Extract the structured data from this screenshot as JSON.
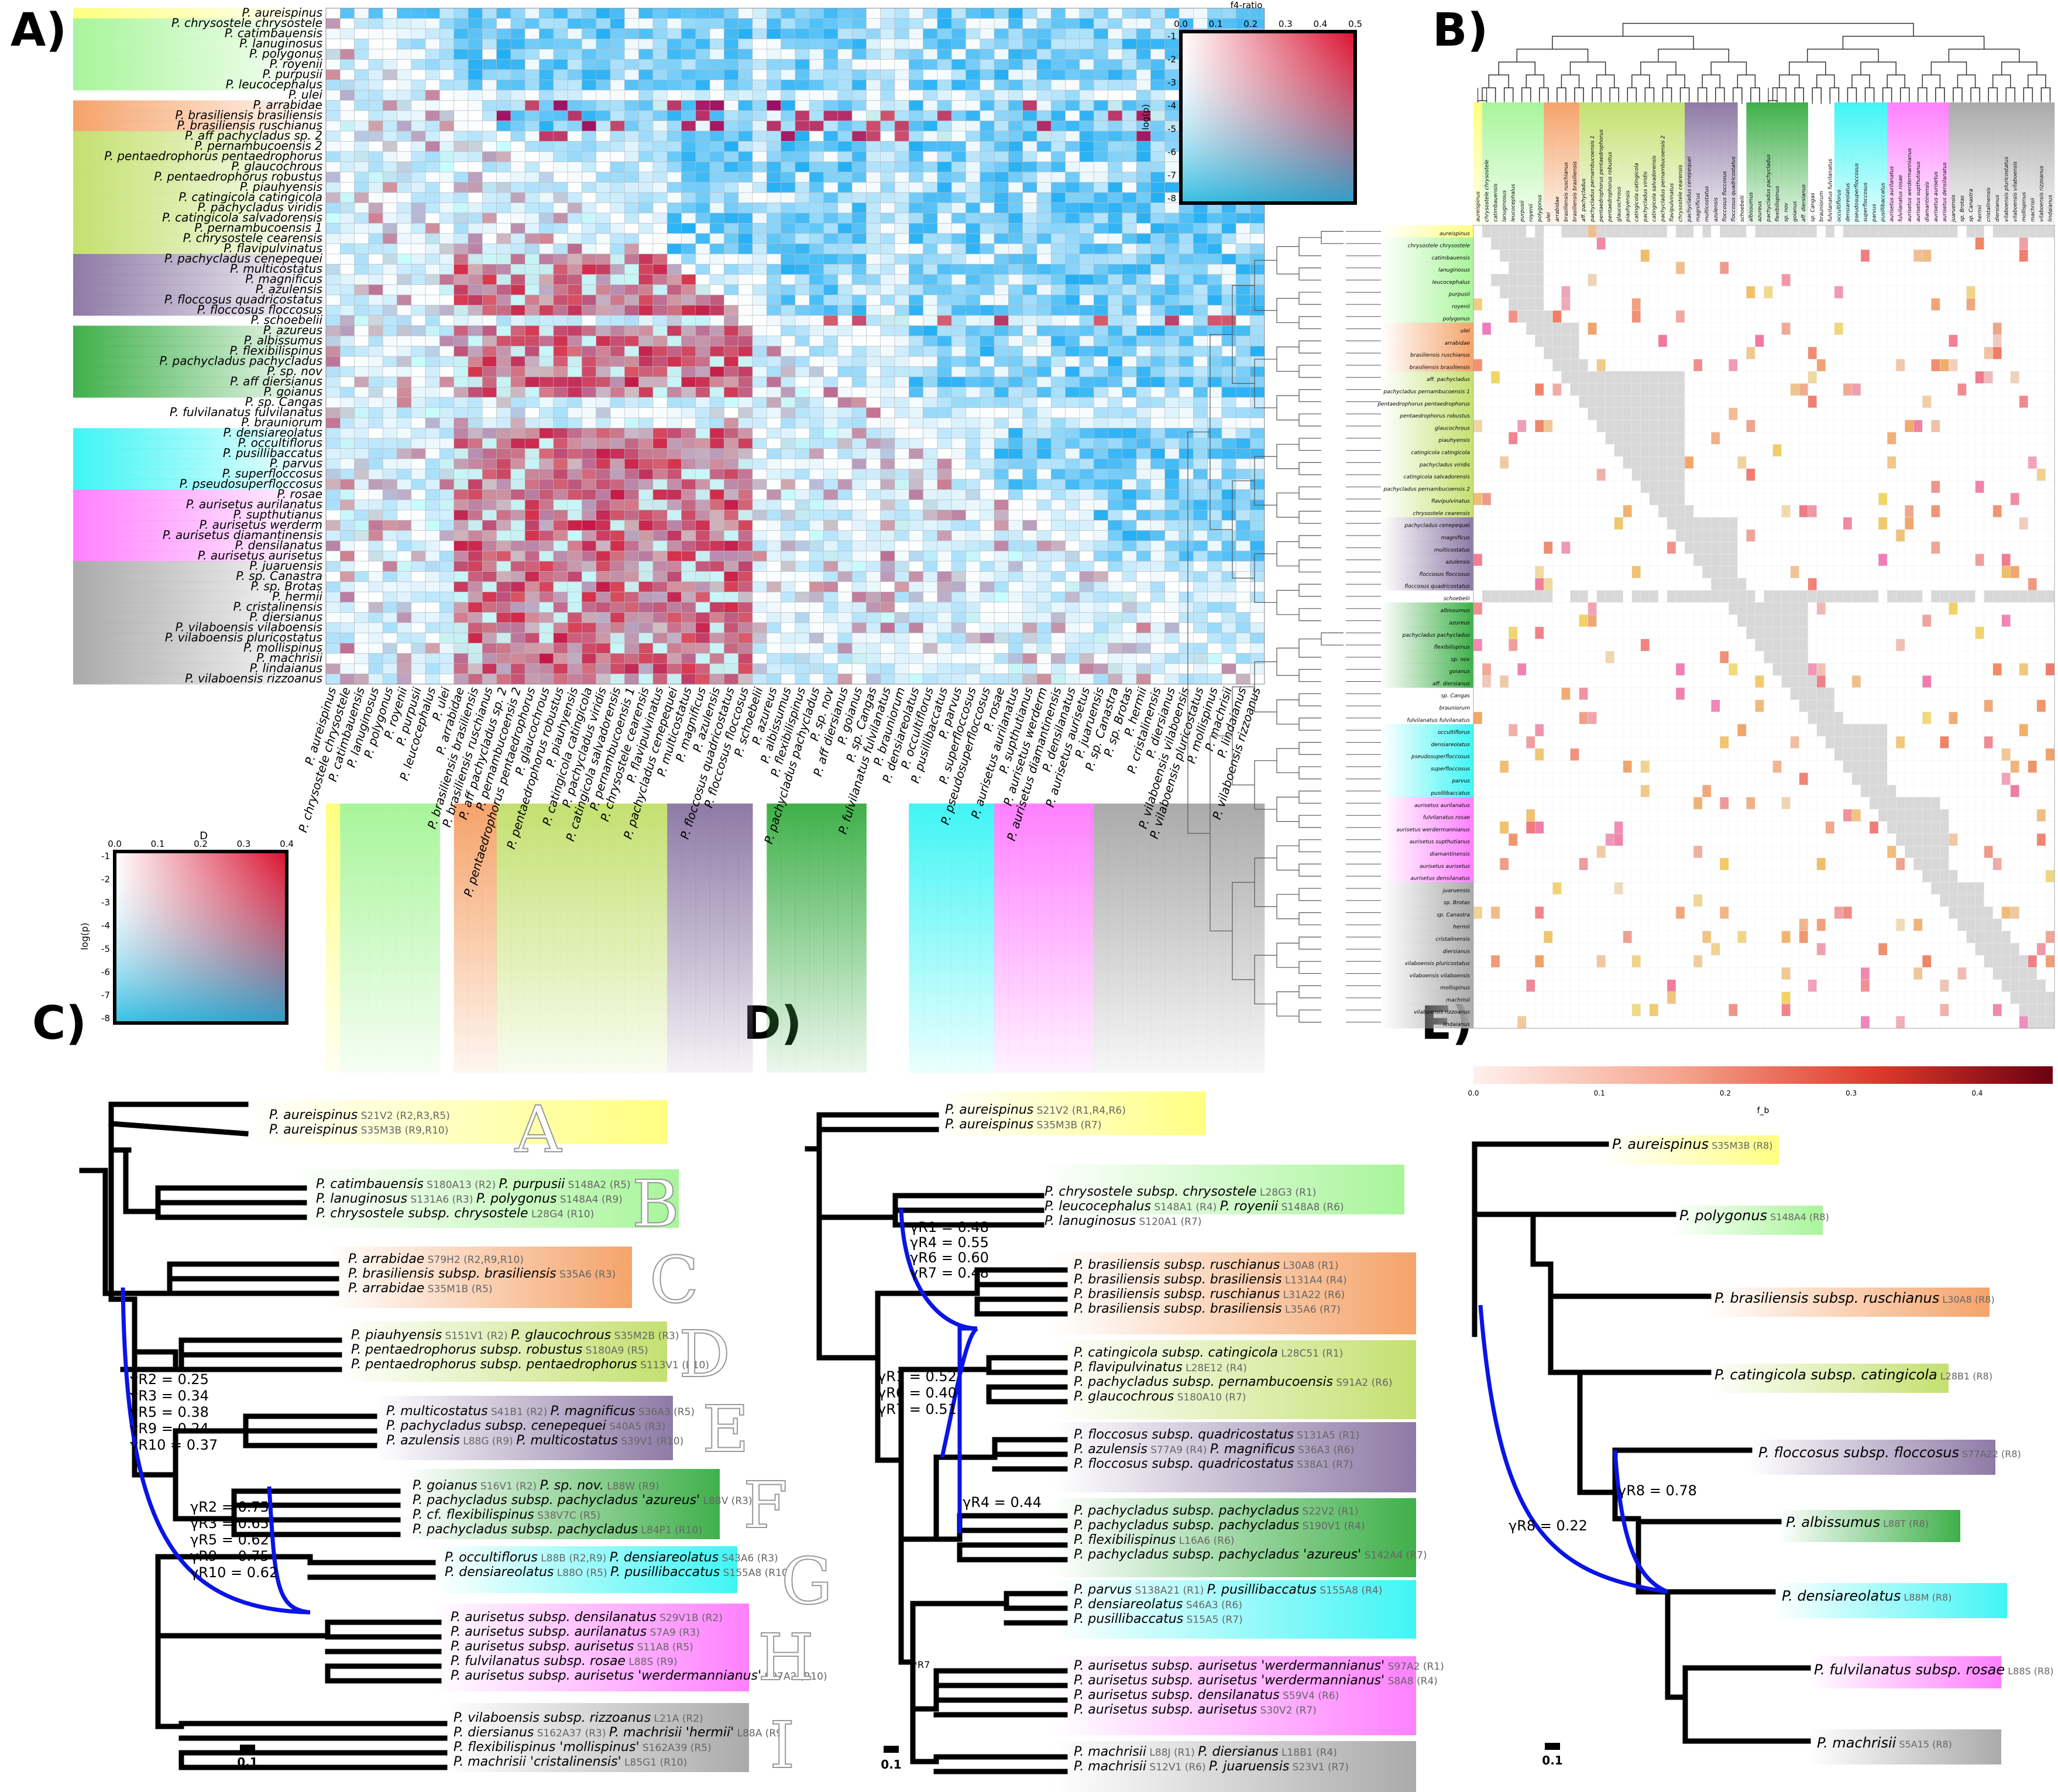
{
  "panels": {
    "A": "A)",
    "B": "B)",
    "C": "C)",
    "D": "D)",
    "E": "E)"
  },
  "panelA": {
    "species": [
      "P. aureispinus",
      "P. chrysostele chrysostele",
      "P. catimbauensis",
      "P. lanuginosus",
      "P. polygonus",
      "P. royenii",
      "P. purpusii",
      "P. leucocephalus",
      "P. ulei",
      "P. arrabidae",
      "P. brasiliensis brasiliensis",
      "P. brasiliensis ruschianus",
      "P. aff pachycladus sp. 2",
      "P. pernambucoensis 2",
      "P. pentaedrophorus pentaedrophorus",
      "P. glaucochrous",
      "P. pentaedrophorus robustus",
      "P. piauhyensis",
      "P. catingicola catingicola",
      "P. pachycladus viridis",
      "P. catingicola salvadorensis",
      "P. pernambucoensis 1",
      "P. chrysostele cearensis",
      "P. flavipulvinatus",
      "P. pachycladus cenepequei",
      "P. multicostatus",
      "P. magnificus",
      "P. azulensis",
      "P. floccosus quadricostatus",
      "P. floccosus floccosus",
      "P. schoebelii",
      "P. azureus",
      "P. albissumus",
      "P. flexibilispinus",
      "P. pachycladus pachycladus",
      "P. sp. nov",
      "P. aff diersianus",
      "P. goianus",
      "P. sp. Cangas",
      "P. fulvilanatus fulvilanatus",
      "P. brauniorum",
      "P. densiareolatus",
      "P. occultiflorus",
      "P. pusillibaccatus",
      "P. parvus",
      "P. superfloccosus",
      "P. pseudosuperfloccosus",
      "P. rosae",
      "P. aurisetus aurilanatus",
      "P. supthutianus",
      "P. aurisetus werderm",
      "P. aurisetus diamantinensis",
      "P. densilanatus",
      "P. aurisetus aurisetus",
      "P. juaruensis",
      "P. sp. Canastra",
      "P. sp. Brotas",
      "P. hermii",
      "P. cristalinensis",
      "P. diersianus",
      "P. vilaboensis vilaboensis",
      "P. vilaboensis pluricostatus",
      "P. mollispinus",
      "P. machrisii",
      "P. lindaianus",
      "P. vilaboensis rizzoanus"
    ],
    "clade_colors": [
      "#ffff88",
      "#b8f5a0",
      "#f5a36a",
      "#c9e07a",
      "#8e7aa6",
      "#3fb04a",
      "#5ff5f5",
      "#ff8cff",
      "#aaaaaa"
    ],
    "legend": {
      "title": "D",
      "ticks": [
        "0.0",
        "0.1",
        "0.2",
        "0.3",
        "0.4"
      ],
      "ylabel": "log(p)",
      "yticks": [
        "-1",
        "-2",
        "-3",
        "-4",
        "-5",
        "-6",
        "-7",
        "-8"
      ]
    },
    "legend_f4": {
      "title": "f4-ratio",
      "ticks": [
        "0.0",
        "0.1",
        "0.2",
        "0.3",
        "0.4",
        "0.5"
      ],
      "ylabel": "log(p)",
      "yticks": [
        "-1",
        "-2",
        "-3",
        "-4",
        "-5",
        "-6",
        "-7",
        "-8"
      ]
    }
  },
  "panelB": {
    "rows": [
      "aureispinus",
      "chrysostele chrysostele",
      "catimbauensis",
      "lanuginosus",
      "leucocephalus",
      "purpusii",
      "royenii",
      "polygonus",
      "ulei",
      "arrabidae",
      "brasiliensis ruschianus",
      "brasiliensis brasiliensis",
      "aff. pachycladus",
      "pachycladus pernambucoensis 1",
      "pentaedrophorus pentaedrophorus",
      "pentaedrophorus robustus",
      "glaucochrous",
      "piauhyensis",
      "catingicola catingicola",
      "pachycladus viridis",
      "catingicola salvadorensis",
      "pachycladus pernambucoensis 2",
      "flavipulvinatus",
      "chrysostele cearensis",
      "pachycladus cenepequei",
      "magnificus",
      "multicostatus",
      "azulensis",
      "floccosus floccosus",
      "floccosus quadricostatus",
      "schoebelii",
      "albissumus",
      "azureus",
      "pachycladus pachycladus",
      "flexibilispinus",
      "sp. nov",
      "goianus",
      "aff. diersianus",
      "sp. Cangas",
      "brauniorum",
      "fulvilanatus fulvilanatus",
      "occultiflorus",
      "densiareolatus",
      "pseudosuperfloccosus",
      "superfloccosus",
      "parvus",
      "pusillibaccatus",
      "aurisetus aurilanatus",
      "fulvilanatus rosae",
      "aurisetus werdermannianus",
      "aurisetus supthutianus",
      "diamantinensis",
      "aurisetus aurisetus",
      "aurisetus densilanatus",
      "juaruensis",
      "sp. Brotas",
      "sp. Canastra",
      "hermii",
      "cristalinensis",
      "diersianus",
      "vilaboensis pluricostatus",
      "vilaboensis vilaboensis",
      "mollispinus",
      "machrisii",
      "vilaboensis rizzoanus",
      "lindaianus"
    ],
    "colorbar": {
      "label": "f_b",
      "ticks": [
        "0.0",
        "0.1",
        "0.2",
        "0.3",
        "0.4"
      ]
    }
  },
  "panelC": {
    "clade_letters": [
      "A",
      "B",
      "C",
      "D",
      "E",
      "F",
      "G",
      "H",
      "I"
    ],
    "labels": [
      [
        "P. aureispinus",
        " S21V2 (R2,R3,R5)"
      ],
      [
        "P. aureispinus",
        " S35M3B (R9,R10)"
      ],
      [
        "P. catimbauensis",
        " S180A13 (R2)  ",
        "P. purpusii",
        " S148A2 (R5)"
      ],
      [
        "P. lanuginosus",
        " S131A6 (R3)  ",
        "P. polygonus",
        " S148A4 (R9)"
      ],
      [
        "P. chrysostele subsp. chrysostele",
        " L28G4 (R10)"
      ],
      [
        "P. arrabidae",
        " S79H2 (R2,R9,R10)"
      ],
      [
        "P. brasiliensis subsp. brasiliensis",
        " S35A6 (R3)"
      ],
      [
        "P. arrabidae",
        " S35M1B (R5)"
      ],
      [
        "P. piauhyensis",
        " S151V1 (R2)  ",
        "P. glaucochrous",
        " S35M2B (R3)"
      ],
      [
        "P. pentaedrophorus subsp. robustus",
        " S180A9 (R5)"
      ],
      [
        "P. pentaedrophorus subsp. pentaedrophorus",
        " S113V1 (R10)"
      ],
      [
        "P. multicostatus",
        " S41B1 (R2)  ",
        "P. magnificus",
        " S36A3 (R5)"
      ],
      [
        "P. pachycladus subsp. cenepequei",
        " S40A5 (R3)"
      ],
      [
        "P. azulensis",
        " L88G (R9)  ",
        "P. multicostatus",
        " S39V1 (R10)"
      ],
      [
        "P. goianus",
        " S16V1 (R2)  ",
        "P. sp. nov.",
        " L88W (R9)"
      ],
      [
        "P. pachycladus subsp. pachycladus 'azureus'",
        " L88V (R3)"
      ],
      [
        "P. cf. flexibilispinus",
        " S38V7C (R5)"
      ],
      [
        "P. pachycladus subsp. pachycladus",
        " L84P1 (R10)"
      ],
      [
        "P. occultiflorus",
        " L88B (R2,R9)  ",
        "P. densiareolatus",
        " S43A6 (R3)"
      ],
      [
        "P. densiareolatus",
        " L88O (R5)  ",
        "P. pusillibaccatus",
        " S155A8 (R10)"
      ],
      [
        "P. aurisetus subsp. densilanatus",
        " S29V1B (R2)"
      ],
      [
        "P. aurisetus subsp. aurilanatus",
        " S7A9 (R3)"
      ],
      [
        "P. aurisetus subsp. aurisetus",
        " S11A8 (R5)"
      ],
      [
        "P. fulvilanatus subsp. rosae",
        " L88S (R9)"
      ],
      [
        "P. aurisetus subsp. aurisetus 'werdermannianus'",
        " S97A2 (R10)"
      ],
      [
        "P. vilaboensis subsp. rizzoanus",
        " L21A (R2)"
      ],
      [
        "P. diersianus",
        " S162A37 (R3)  ",
        "P. machrisii 'hermii'",
        " L88A (R9)"
      ],
      [
        "P. flexibilispinus 'mollispinus'",
        " S162A39 (R5)"
      ],
      [
        "P. machrisii 'cristalinensis'",
        " L85G1 (R10)"
      ]
    ],
    "gamma1": [
      "γR2 = 0.25",
      "γR3 = 0.34",
      "γR5 = 0.38",
      "γR9 = 0.24",
      "γR10 = 0.37"
    ],
    "gamma2": [
      "γR2 = 0.75",
      "γR3 = 0.65",
      "γR5 = 0.62",
      "γR9 = 0.75",
      "γR10 = 0.62"
    ],
    "scale": "0.1"
  },
  "panelD": {
    "labels": [
      [
        "P. aureispinus",
        " S21V2 (R1,R4,R6)"
      ],
      [
        "P. aureispinus",
        " S35M3B (R7)"
      ],
      [
        "P. chrysostele subsp. chrysostele",
        " L28G3 (R1)"
      ],
      [
        "P. leucocephalus",
        " S148A1 (R4)  ",
        "P. royenii",
        " S148A8 (R6)"
      ],
      [
        "P. lanuginosus",
        " S120A1 (R7)"
      ],
      [
        "P. brasiliensis subsp. ruschianus",
        " L30A8 (R1)"
      ],
      [
        "P. brasiliensis subsp. brasiliensis",
        " L131A4 (R4)"
      ],
      [
        "P. brasiliensis subsp. ruschianus",
        " L31A22 (R6)"
      ],
      [
        "P. brasiliensis subsp. brasiliensis",
        " L35A6 (R7)"
      ],
      [
        "P. catingicola subsp. catingicola",
        " L28C51 (R1)"
      ],
      [
        "P. flavipulvinatus",
        " L28E12 (R4)"
      ],
      [
        "P. pachycladus subsp. pernambucoensis",
        " S91A2 (R6)"
      ],
      [
        "P. glaucochrous",
        " S180A10 (R7)"
      ],
      [
        "P. floccosus subsp. quadricostatus",
        " S131A5 (R1)"
      ],
      [
        "P. azulensis",
        " S77A9 (R4)  ",
        "P. magnificus",
        " S36A3 (R6)"
      ],
      [
        "P. floccosus subsp. quadricostatus",
        " S38A1 (R7)"
      ],
      [
        "P. pachycladus subsp. pachycladus",
        " S22V2 (R1)"
      ],
      [
        "P. pachycladus subsp. pachycladus",
        " S190V1 (R4)"
      ],
      [
        "P. flexibilispinus",
        " L16A6 (R6)"
      ],
      [
        "P. pachycladus subsp. pachycladus 'azureus'",
        " S142A4 (R7)"
      ],
      [
        "P. parvus",
        " S138A21 (R1)  ",
        "P. pusillibaccatus",
        " S155A8 (R4)"
      ],
      [
        "P. densiareolatus",
        " S46A3 (R6)"
      ],
      [
        "P. pusillibaccatus",
        " S15A5 (R7)"
      ],
      [
        "P. aurisetus subsp. aurisetus 'werdermannianus'",
        " S97A2 (R1)"
      ],
      [
        "P. aurisetus subsp. aurisetus 'werdermannianus'",
        " S8A8 (R4)"
      ],
      [
        "P. aurisetus subsp. densilanatus",
        " S59V4 (R6)"
      ],
      [
        "P. aurisetus subsp. aurisetus",
        " S30V2 (R7)"
      ],
      [
        "P. machrisii",
        " L88J (R1)  ",
        "P. diersianus",
        " L18B1 (R4)"
      ],
      [
        "P. machrisii",
        " S12V1 (R6)  ",
        "P. juaruensis",
        " S23V1 (R7)"
      ]
    ],
    "gamma1": [
      "γR1 = 0.48",
      "γR4 = 0.55",
      "γR6 = 0.60",
      "γR7 = 0.48"
    ],
    "gamma2": [
      "γR1 = 0.52",
      "γR6 = 0.40",
      "γR7 = 0.51"
    ],
    "gamma3": "γR4 = 0.44",
    "star": "*R7",
    "scale": "0.1"
  },
  "panelE": {
    "labels": [
      [
        "P. aureispinus",
        " S35M3B (R8)"
      ],
      [
        "P. polygonus",
        " S148A4 (R8)"
      ],
      [
        "P. brasiliensis subsp. ruschianus",
        " L30A8 (R8)"
      ],
      [
        "P. catingicola subsp. catingicola",
        " L28B1 (R8)"
      ],
      [
        "P. floccosus subsp. floccosus",
        " S77A22 (R8)"
      ],
      [
        "P. albissumus",
        " L88T (R8)"
      ],
      [
        "P. densiareolatus",
        " L88M (R8)"
      ],
      [
        "P. fulvilanatus subsp. rosae",
        " L88S (R8)"
      ],
      [
        "P. machrisii",
        " S5A15 (R8)"
      ]
    ],
    "gamma1": "γR8 = 0.22",
    "gamma2": "γR8 = 0.78",
    "scale": "0.1"
  },
  "chart_data": [
    {
      "type": "heatmap",
      "panel": "A",
      "title": "",
      "rows": "panelA.species",
      "cols": "panelA.species",
      "color_scale": "D",
      "significance": "log(p)"
    },
    {
      "type": "heatmap",
      "panel": "B",
      "title": "",
      "rows": "panelB.rows",
      "cols": "panelB.rows",
      "color_scale": "f_b"
    }
  ]
}
